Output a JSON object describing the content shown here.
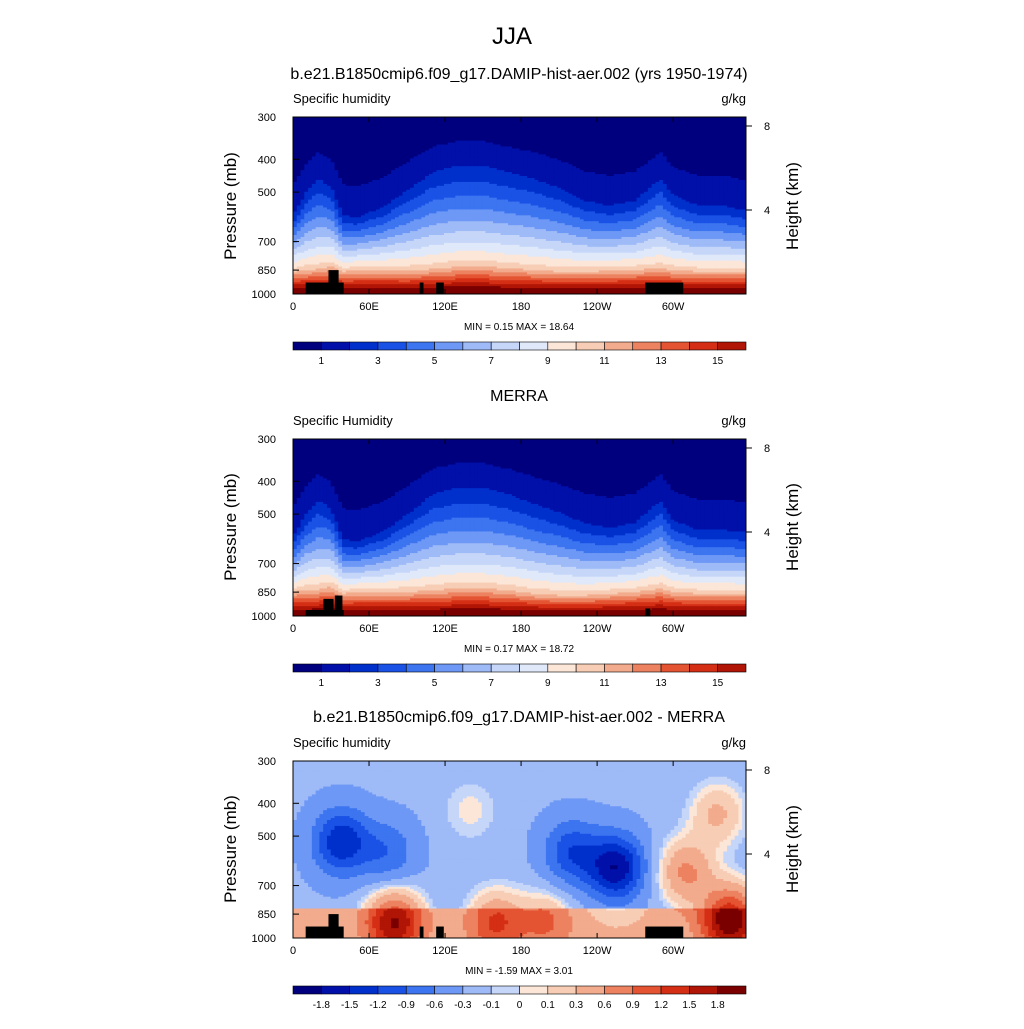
{
  "page_title": "JJA",
  "colors": {
    "abs_scale": [
      "#00007f",
      "#0010a8",
      "#0030cc",
      "#1a52e6",
      "#3d75f0",
      "#6e98f5",
      "#9ebaf7",
      "#c5d6f9",
      "#e0e9fa",
      "#fbe6d8",
      "#f7cdb5",
      "#f2ab8c",
      "#ec8260",
      "#e55432",
      "#d42e15",
      "#b01505",
      "#7a0000"
    ],
    "diff_scale": [
      "#00007f",
      "#0010a8",
      "#0030cc",
      "#1a52e6",
      "#3d75f0",
      "#6e98f5",
      "#9ebaf7",
      "#c5d6f9",
      "#e0e9fa",
      "#fbe6d8",
      "#f7cdb5",
      "#f2ab8c",
      "#ec8260",
      "#e55432",
      "#d42e15",
      "#b01505",
      "#7a0000"
    ],
    "topography": "#000000"
  },
  "chart_data": [
    {
      "type": "heatmap",
      "title": "b.e21.B1850cmip6.f09_g17.DAMIP-hist-aer.002 (yrs 1950-1974)",
      "left_label": "Specific humidity",
      "units": "g/kg",
      "ylabel": "Pressure (mb)",
      "y2label": "Height (km)",
      "xticks": [
        "0",
        "60E",
        "120E",
        "180",
        "120W",
        "60W"
      ],
      "xtick_values": [
        0,
        60,
        120,
        180,
        240,
        300
      ],
      "xlim": [
        0,
        357.5
      ],
      "yticks": [
        "300",
        "400",
        "500",
        "700",
        "850",
        "1000"
      ],
      "ytick_values": [
        300,
        400,
        500,
        700,
        850,
        1000
      ],
      "ylim": [
        300,
        1000
      ],
      "y2ticks": [
        "8",
        "4"
      ],
      "y2tick_values": [
        8,
        4
      ],
      "stats": "MIN =   0.15  MAX =  18.64",
      "colorbar_labels": [
        "1",
        "3",
        "5",
        "7",
        "9",
        "11",
        "13",
        "15"
      ],
      "colorbar_levels": 16,
      "profile": {
        "lon": [
          0,
          10,
          20,
          30,
          40,
          50,
          70,
          90,
          110,
          130,
          150,
          170,
          190,
          210,
          230,
          250,
          270,
          290,
          300,
          320,
          340,
          357.5
        ],
        "boundary_layer_top_mb": [
          860,
          850,
          845,
          830,
          860,
          850,
          850,
          855,
          845,
          830,
          830,
          840,
          850,
          860,
          860,
          855,
          850,
          840,
          850,
          860,
          860,
          860
        ],
        "upper_moist_top_mb": [
          560,
          470,
          420,
          450,
          560,
          570,
          530,
          460,
          400,
          380,
          380,
          400,
          420,
          450,
          500,
          520,
          500,
          420,
          480,
          520,
          520,
          540
        ]
      }
    },
    {
      "type": "heatmap",
      "title": "MERRA",
      "left_label": "Specific Humidity",
      "units": "g/kg",
      "ylabel": "Pressure (mb)",
      "y2label": "Height (km)",
      "xticks": [
        "0",
        "60E",
        "120E",
        "180",
        "120W",
        "60W"
      ],
      "xtick_values": [
        0,
        60,
        120,
        180,
        240,
        300
      ],
      "xlim": [
        0,
        357.5
      ],
      "yticks": [
        "300",
        "400",
        "500",
        "700",
        "850",
        "1000"
      ],
      "ytick_values": [
        300,
        400,
        500,
        700,
        850,
        1000
      ],
      "ylim": [
        300,
        1000
      ],
      "y2ticks": [
        "8",
        "4"
      ],
      "y2tick_values": [
        8,
        4
      ],
      "stats": "MIN =   0.17  MAX =  18.72",
      "colorbar_labels": [
        "1",
        "3",
        "5",
        "7",
        "9",
        "11",
        "13",
        "15"
      ],
      "colorbar_levels": 16,
      "profile": {
        "lon": [
          0,
          10,
          20,
          30,
          40,
          50,
          70,
          90,
          110,
          130,
          150,
          170,
          190,
          210,
          230,
          250,
          270,
          290,
          300,
          320,
          340,
          357.5
        ],
        "boundary_layer_top_mb": [
          850,
          840,
          835,
          820,
          860,
          850,
          850,
          850,
          840,
          830,
          830,
          840,
          860,
          870,
          870,
          860,
          850,
          830,
          850,
          860,
          860,
          860
        ],
        "upper_moist_top_mb": [
          560,
          470,
          420,
          450,
          570,
          580,
          540,
          470,
          400,
          380,
          380,
          400,
          430,
          460,
          500,
          520,
          500,
          420,
          490,
          530,
          530,
          540
        ]
      }
    },
    {
      "type": "heatmap",
      "title": "b.e21.B1850cmip6.f09_g17.DAMIP-hist-aer.002 - MERRA",
      "left_label": "Specific humidity",
      "units": "g/kg",
      "ylabel": "Pressure (mb)",
      "y2label": "Height (km)",
      "xticks": [
        "0",
        "60E",
        "120E",
        "180",
        "120W",
        "60W"
      ],
      "xtick_values": [
        0,
        60,
        120,
        180,
        240,
        300
      ],
      "xlim": [
        0,
        357.5
      ],
      "yticks": [
        "300",
        "400",
        "500",
        "700",
        "850",
        "1000"
      ],
      "ytick_values": [
        300,
        400,
        500,
        700,
        850,
        1000
      ],
      "ylim": [
        300,
        1000
      ],
      "y2ticks": [
        "8",
        "4"
      ],
      "y2tick_values": [
        8,
        4
      ],
      "stats": "MIN =  -1.59  MAX =   3.01",
      "colorbar_labels": [
        "-1.8",
        "-1.5",
        "-1.2",
        "-0.9",
        "-0.6",
        "-0.3",
        "-0.1",
        "0",
        "0.1",
        "0.3",
        "0.6",
        "0.9",
        "1.2",
        "1.5",
        "1.8"
      ],
      "colorbar_levels": 16,
      "difference_features": [
        {
          "lon": 38,
          "p_mb": 520,
          "value": -1.2
        },
        {
          "lon": 75,
          "p_mb": 560,
          "value": -0.6
        },
        {
          "lon": 140,
          "p_mb": 420,
          "value": 0.3
        },
        {
          "lon": 220,
          "p_mb": 560,
          "value": -0.9
        },
        {
          "lon": 255,
          "p_mb": 620,
          "value": -1.5
        },
        {
          "lon": 310,
          "p_mb": 640,
          "value": 0.9
        },
        {
          "lon": 335,
          "p_mb": 430,
          "value": 0.6
        },
        {
          "lon": 345,
          "p_mb": 880,
          "value": 1.8
        },
        {
          "lon": 80,
          "p_mb": 900,
          "value": 1.5
        },
        {
          "lon": 160,
          "p_mb": 900,
          "value": 0.9
        },
        {
          "lon": 200,
          "p_mb": 890,
          "value": 0.6
        }
      ]
    }
  ],
  "topography": [
    {
      "lon": [
        10,
        40
      ],
      "p_mb": 925
    },
    {
      "lon": [
        28,
        36
      ],
      "p_mb": 850
    },
    {
      "lon": [
        100,
        103
      ],
      "p_mb": 925
    },
    {
      "lon": [
        113,
        119
      ],
      "p_mb": 925
    },
    {
      "lon": [
        278,
        308
      ],
      "p_mb": 925
    }
  ],
  "topography_merra": [
    {
      "lon": [
        10,
        40
      ],
      "p_mb": 960
    },
    {
      "lon": [
        24,
        32
      ],
      "p_mb": 890
    },
    {
      "lon": [
        33,
        39
      ],
      "p_mb": 870
    },
    {
      "lon": [
        278,
        282
      ],
      "p_mb": 950
    }
  ]
}
